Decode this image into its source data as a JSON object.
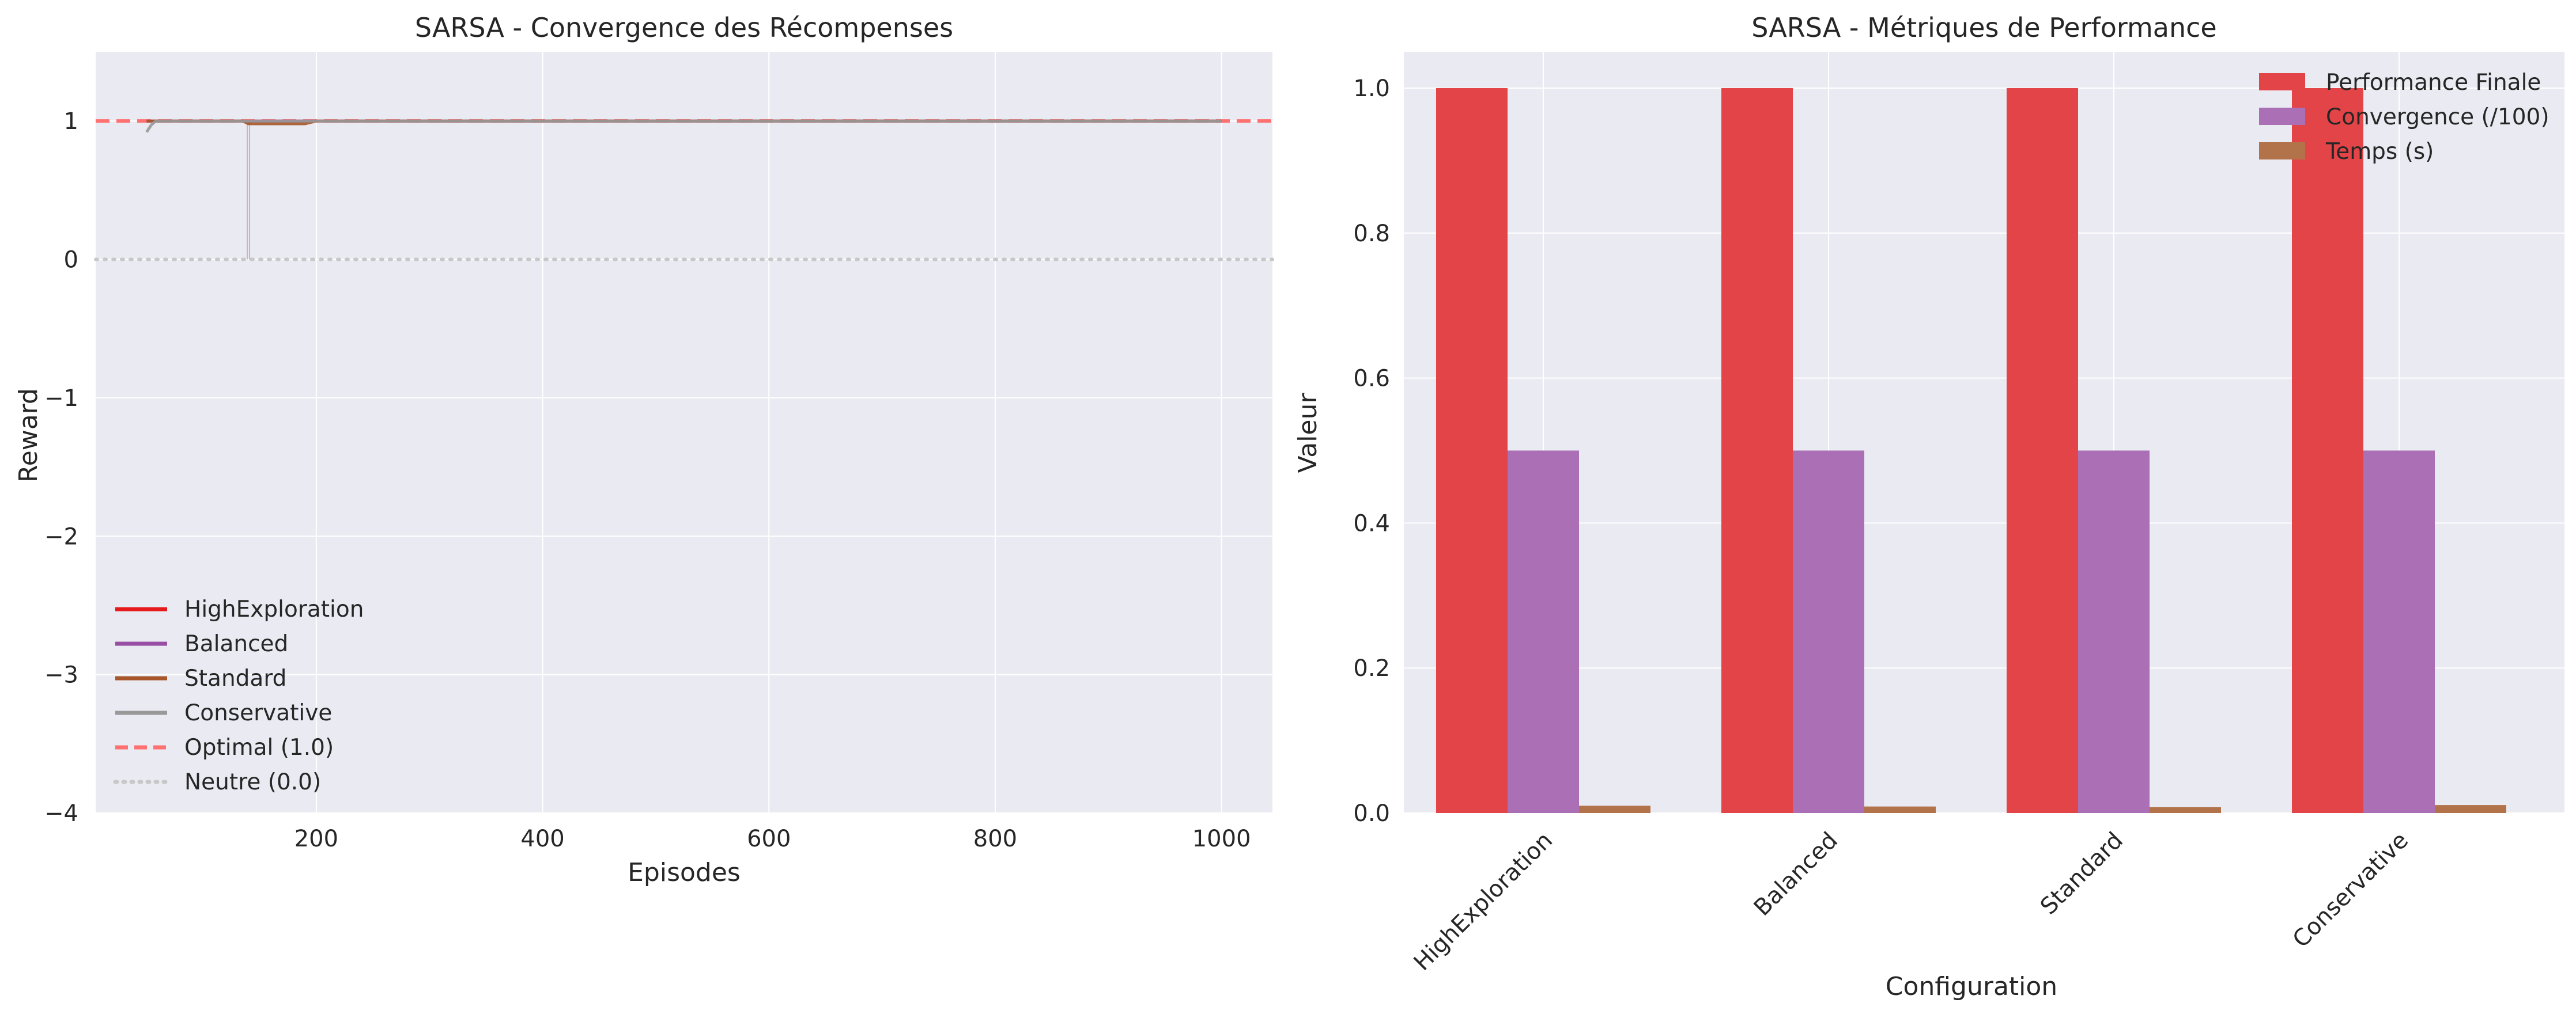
{
  "colors": {
    "axes_bg": "#EAEAF2",
    "grid": "#ffffff",
    "HighExploration": "#E41A1C",
    "Balanced": "#984EA3",
    "Standard": "#A65628",
    "Conservative": "#999999",
    "optimal_line": "#FF7070",
    "neutral_line": "#C8C8C8",
    "bar_performance": "#E34447",
    "bar_convergence": "#AA6FB5",
    "bar_time": "#B2724A"
  },
  "chart_data": [
    {
      "type": "line",
      "title": "SARSA - Convergence des Récompenses",
      "xlabel": "Episodes",
      "ylabel": "Reward",
      "xlim": [
        5,
        1045
      ],
      "ylim": [
        -4,
        1.5
      ],
      "xticks": [
        200,
        400,
        600,
        800,
        1000
      ],
      "xtick_labels": [
        "200",
        "400",
        "600",
        "800",
        "1000"
      ],
      "yticks": [
        1,
        0,
        -1,
        -2,
        -3,
        -4
      ],
      "ytick_labels": [
        "1",
        "0",
        "−1",
        "−2",
        "−3",
        "−4"
      ],
      "grid": true,
      "legend_position": "lower-left",
      "series": [
        {
          "name": "HighExploration",
          "color_key": "HighExploration",
          "x": [
            50,
            60,
            100,
            135,
            140,
            145,
            200,
            1000
          ],
          "y": [
            1.0,
            1.0,
            1.0,
            1.0,
            1.0,
            1.0,
            1.0,
            1.0
          ]
        },
        {
          "name": "Balanced",
          "color_key": "Balanced",
          "x": [
            50,
            60,
            100,
            135,
            140,
            145,
            200,
            1000
          ],
          "y": [
            1.0,
            1.0,
            1.0,
            1.0,
            0.99,
            1.0,
            1.0,
            1.0
          ]
        },
        {
          "name": "Standard",
          "color_key": "Standard",
          "x": [
            50,
            60,
            135,
            140,
            145,
            150,
            190,
            200,
            1000
          ],
          "y": [
            1.0,
            1.0,
            1.0,
            0.98,
            0.98,
            0.98,
            0.98,
            1.0,
            1.0
          ]
        },
        {
          "name": "Conservative",
          "color_key": "Conservative",
          "x": [
            50,
            54,
            58,
            100,
            200,
            1000
          ],
          "y": [
            0.92,
            0.97,
            1.0,
            1.0,
            1.0,
            1.0
          ]
        }
      ],
      "raw_spikes": [
        {
          "x": 139,
          "y_top": 1.0,
          "y_bottom": 0.0
        },
        {
          "x": 141,
          "y_top": 1.0,
          "y_bottom": 0.0
        }
      ],
      "reference_lines": [
        {
          "name": "Optimal (1.0)",
          "y": 1.0,
          "style": "dashed",
          "color_key": "optimal_line"
        },
        {
          "name": "Neutre (0.0)",
          "y": 0.0,
          "style": "dotted",
          "color_key": "neutral_line"
        }
      ]
    },
    {
      "type": "bar",
      "title": "SARSA - Métriques de Performance",
      "xlabel": "Configuration",
      "ylabel": "Valeur",
      "ylim": [
        0,
        1.05
      ],
      "yticks": [
        0.0,
        0.2,
        0.4,
        0.6,
        0.8,
        1.0
      ],
      "ytick_labels": [
        "0.0",
        "0.2",
        "0.4",
        "0.6",
        "0.8",
        "1.0"
      ],
      "grid": true,
      "legend_position": "top-right",
      "categories": [
        "HighExploration",
        "Balanced",
        "Standard",
        "Conservative"
      ],
      "series": [
        {
          "name": "Performance Finale",
          "color_key": "bar_performance",
          "values": [
            1.0,
            1.0,
            1.0,
            1.0
          ]
        },
        {
          "name": "Convergence (/100)",
          "color_key": "bar_convergence",
          "values": [
            0.5,
            0.5,
            0.5,
            0.5
          ]
        },
        {
          "name": "Temps (s)",
          "color_key": "bar_time",
          "values": [
            0.01,
            0.009,
            0.008,
            0.011
          ]
        }
      ]
    }
  ]
}
